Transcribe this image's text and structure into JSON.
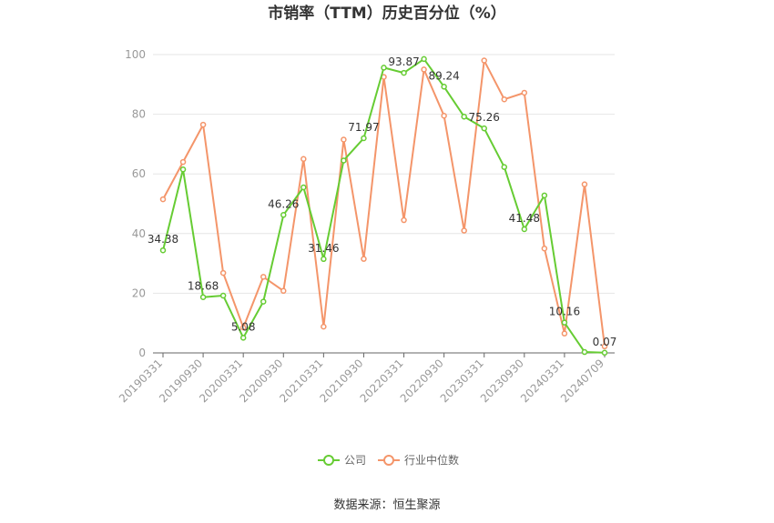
{
  "chart_data": {
    "type": "line",
    "title": "市销率（TTM）历史百分位（%）",
    "source": "数据来源：恒生聚源",
    "ylim": [
      0,
      100
    ],
    "yticks": [
      0,
      20,
      40,
      60,
      80,
      100
    ],
    "grid": true,
    "legend_position": "bottom",
    "tick_labels": [
      "20190331",
      "20190930",
      "20200331",
      "20200930",
      "20210331",
      "20210930",
      "20220331",
      "20220930",
      "20230331",
      "20230930",
      "20240331",
      "20240709"
    ],
    "x": [
      "20190331",
      "20190630",
      "20190930",
      "20191231",
      "20200331",
      "20200630",
      "20200930",
      "20201231",
      "20210331",
      "20210630",
      "20210930",
      "20211231",
      "20220331",
      "20220630",
      "20220930",
      "20221231",
      "20230331",
      "20230630",
      "20230930",
      "20231231",
      "20240331",
      "20240630",
      "20240709"
    ],
    "series": [
      {
        "name": "公司",
        "color": "#66cc33",
        "values": [
          34.38,
          61.5,
          18.68,
          19.2,
          5.08,
          17.2,
          46.26,
          55.5,
          31.46,
          64.5,
          71.97,
          95.6,
          93.87,
          98.5,
          89.24,
          79.2,
          75.26,
          62.3,
          41.48,
          52.8,
          10.16,
          0.3,
          0.07
        ],
        "labeled": [
          {
            "index": 0,
            "text": "34.38"
          },
          {
            "index": 2,
            "text": "18.68"
          },
          {
            "index": 4,
            "text": "5.08"
          },
          {
            "index": 6,
            "text": "46.26"
          },
          {
            "index": 8,
            "text": "31.46"
          },
          {
            "index": 10,
            "text": "71.97"
          },
          {
            "index": 12,
            "text": "93.87"
          },
          {
            "index": 14,
            "text": "89.24"
          },
          {
            "index": 16,
            "text": "75.26"
          },
          {
            "index": 18,
            "text": "41.48"
          },
          {
            "index": 20,
            "text": "10.16"
          },
          {
            "index": 22,
            "text": "0.07"
          }
        ]
      },
      {
        "name": "行业中位数",
        "color": "#f4956a",
        "values": [
          51.5,
          64.0,
          76.5,
          26.8,
          8.5,
          25.5,
          20.8,
          65.0,
          8.8,
          71.5,
          31.5,
          92.5,
          44.5,
          95.0,
          79.5,
          41.0,
          98.0,
          85.0,
          87.2,
          35.0,
          6.5,
          56.5,
          2.2
        ]
      }
    ]
  }
}
